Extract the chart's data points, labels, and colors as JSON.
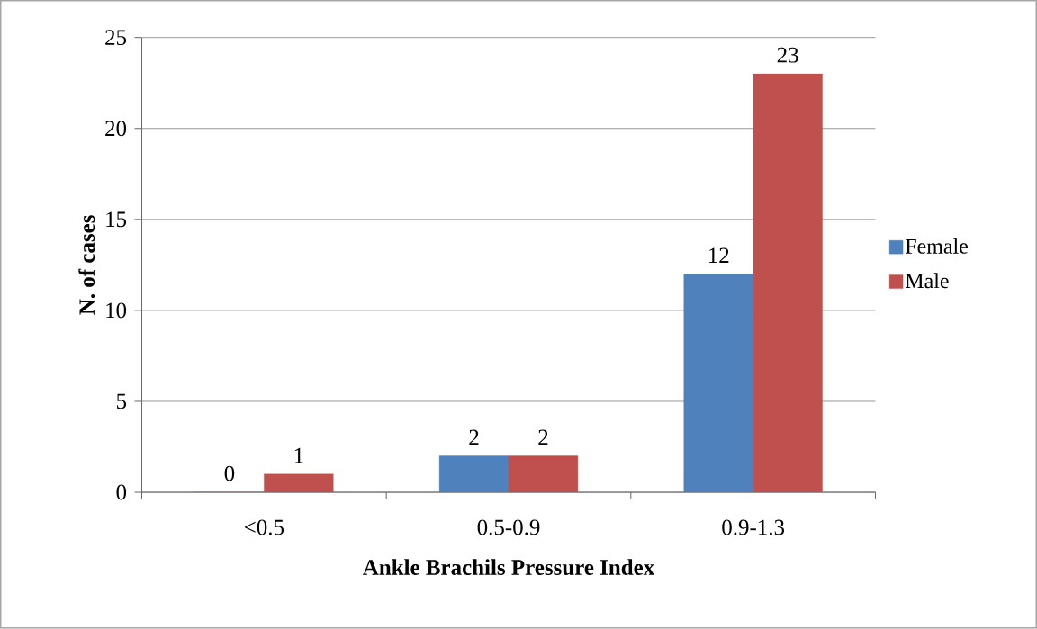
{
  "chart_data": {
    "type": "bar",
    "xlabel": "Ankle Brachils Pressure Index",
    "ylabel": "N. of cases",
    "categories": [
      "<0.5",
      "0.5-0.9",
      "0.9-1.3"
    ],
    "series": [
      {
        "name": "Female",
        "color": "#4f81bd",
        "values": [
          0,
          2,
          12
        ]
      },
      {
        "name": "Male",
        "color": "#c0504d",
        "values": [
          1,
          2,
          23
        ]
      }
    ],
    "ylim": [
      0,
      25
    ],
    "yticks": [
      0,
      5,
      10,
      15,
      20,
      25
    ],
    "grid": "y",
    "legend": "right",
    "data_labels": true
  }
}
